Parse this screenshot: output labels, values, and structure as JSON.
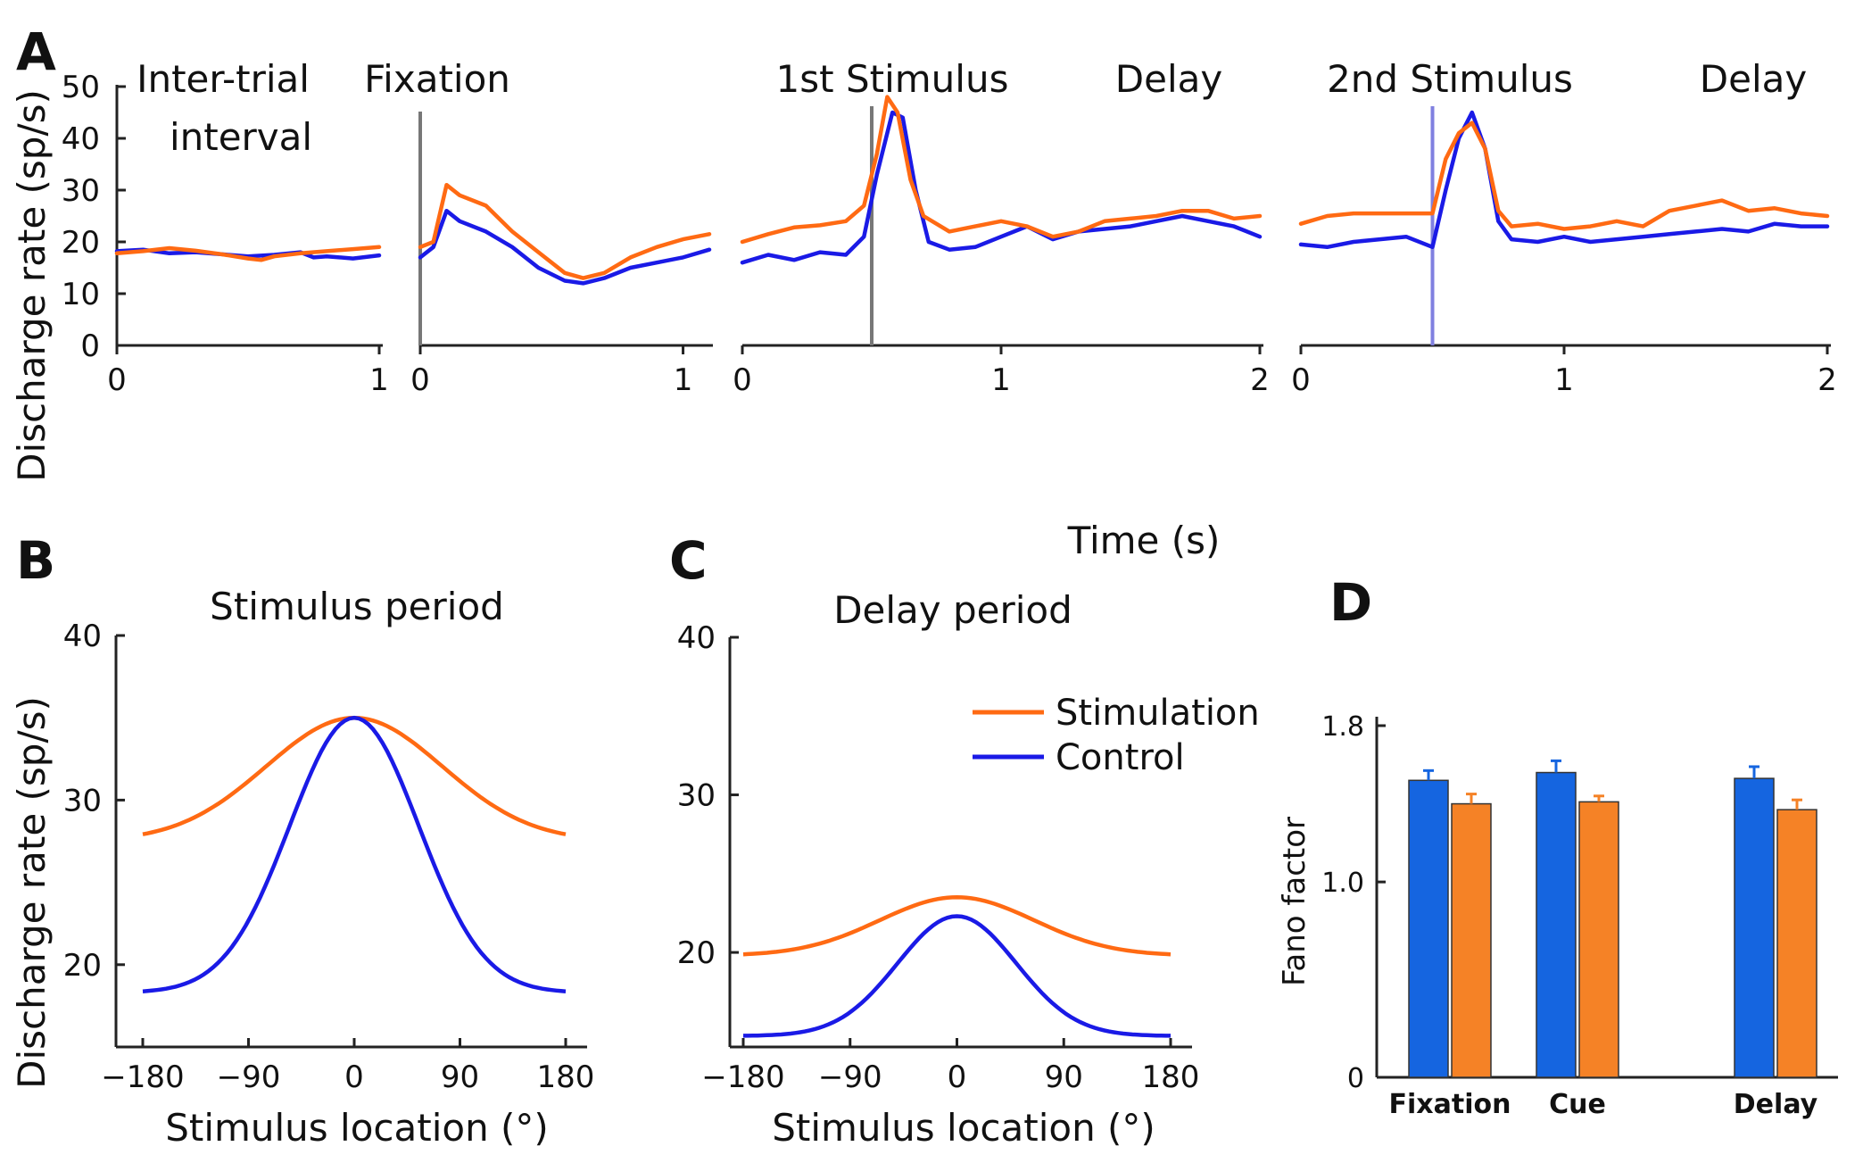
{
  "colors": {
    "stimulation": "#FF6A13",
    "control": "#1A1AE6",
    "bar_control": "#1565E0",
    "bar_stimulation": "#F58226",
    "axis": "#222222",
    "stim_marker_gray": "#777777",
    "stim_marker_blue": "#8080E0"
  },
  "panels": {
    "A": {
      "letter": "A"
    },
    "B": {
      "letter": "B"
    },
    "C": {
      "letter": "C"
    },
    "D": {
      "letter": "D"
    }
  },
  "legend": {
    "stimulation": "Stimulation",
    "control": "Control"
  },
  "chart_data": [
    {
      "id": "A",
      "type": "line",
      "ylabel": "Discharge rate (sp/s)",
      "xlabel": "Time (s)",
      "ylim": [
        0,
        50
      ],
      "yticks": [
        "0",
        "10",
        "20",
        "30",
        "40",
        "50"
      ],
      "epoch_labels": {
        "iti_line1": "Inter-trial",
        "iti_line2": "interval",
        "fixation": "Fixation",
        "stim1": "1st Stimulus",
        "delay1": "Delay",
        "stim2": "2nd Stimulus",
        "delay2": "Delay"
      },
      "subplots": [
        {
          "name": "inter-trial",
          "xlim": [
            0,
            1
          ],
          "xticks": [
            "0",
            "1"
          ],
          "stim_marker": null,
          "stimulation": [
            [
              0,
              17.8
            ],
            [
              0.1,
              18.2
            ],
            [
              0.2,
              18.8
            ],
            [
              0.3,
              18.3
            ],
            [
              0.4,
              17.6
            ],
            [
              0.5,
              16.8
            ],
            [
              0.55,
              16.5
            ],
            [
              0.6,
              17.2
            ],
            [
              0.7,
              17.8
            ],
            [
              0.8,
              18.2
            ],
            [
              0.9,
              18.6
            ],
            [
              1.0,
              19.0
            ]
          ],
          "control": [
            [
              0,
              18.2
            ],
            [
              0.1,
              18.5
            ],
            [
              0.2,
              17.8
            ],
            [
              0.3,
              18.0
            ],
            [
              0.4,
              17.6
            ],
            [
              0.5,
              17.2
            ],
            [
              0.6,
              17.5
            ],
            [
              0.7,
              18.0
            ],
            [
              0.75,
              17.0
            ],
            [
              0.8,
              17.2
            ],
            [
              0.9,
              16.8
            ],
            [
              1.0,
              17.4
            ]
          ]
        },
        {
          "name": "fixation",
          "xlim": [
            0,
            1.1
          ],
          "xticks": [
            "0",
            "1"
          ],
          "stim_marker": 0,
          "stimulation": [
            [
              0,
              19
            ],
            [
              0.05,
              20
            ],
            [
              0.1,
              31
            ],
            [
              0.15,
              29
            ],
            [
              0.25,
              27
            ],
            [
              0.35,
              22
            ],
            [
              0.45,
              18
            ],
            [
              0.55,
              14
            ],
            [
              0.62,
              13
            ],
            [
              0.7,
              14
            ],
            [
              0.8,
              17
            ],
            [
              0.9,
              19
            ],
            [
              1.0,
              20.5
            ],
            [
              1.1,
              21.5
            ]
          ],
          "control": [
            [
              0,
              17
            ],
            [
              0.05,
              19
            ],
            [
              0.1,
              26
            ],
            [
              0.15,
              24
            ],
            [
              0.25,
              22
            ],
            [
              0.35,
              19
            ],
            [
              0.45,
              15
            ],
            [
              0.55,
              12.5
            ],
            [
              0.62,
              12
            ],
            [
              0.7,
              13
            ],
            [
              0.8,
              15
            ],
            [
              0.9,
              16
            ],
            [
              1.0,
              17
            ],
            [
              1.1,
              18.5
            ]
          ]
        },
        {
          "name": "first-stimulus",
          "xlim": [
            0,
            2
          ],
          "xticks": [
            "0",
            "1",
            "2"
          ],
          "stim_marker": 0.5,
          "stimulation": [
            [
              0,
              20
            ],
            [
              0.1,
              21.5
            ],
            [
              0.2,
              22.8
            ],
            [
              0.3,
              23.2
            ],
            [
              0.4,
              24
            ],
            [
              0.47,
              27
            ],
            [
              0.52,
              37
            ],
            [
              0.56,
              48
            ],
            [
              0.6,
              45
            ],
            [
              0.65,
              32
            ],
            [
              0.7,
              25
            ],
            [
              0.8,
              22
            ],
            [
              0.9,
              23
            ],
            [
              1.0,
              24
            ],
            [
              1.1,
              23
            ],
            [
              1.2,
              21
            ],
            [
              1.3,
              22
            ],
            [
              1.4,
              24
            ],
            [
              1.5,
              24.5
            ],
            [
              1.6,
              25
            ],
            [
              1.7,
              26
            ],
            [
              1.8,
              26
            ],
            [
              1.9,
              24.5
            ],
            [
              2.0,
              25
            ]
          ],
          "control": [
            [
              0,
              16
            ],
            [
              0.1,
              17.5
            ],
            [
              0.2,
              16.5
            ],
            [
              0.3,
              18
            ],
            [
              0.4,
              17.5
            ],
            [
              0.47,
              21
            ],
            [
              0.52,
              33
            ],
            [
              0.58,
              45
            ],
            [
              0.62,
              44
            ],
            [
              0.67,
              30
            ],
            [
              0.72,
              20
            ],
            [
              0.8,
              18.5
            ],
            [
              0.9,
              19
            ],
            [
              1.0,
              21
            ],
            [
              1.1,
              23
            ],
            [
              1.2,
              20.5
            ],
            [
              1.3,
              22
            ],
            [
              1.4,
              22.5
            ],
            [
              1.5,
              23
            ],
            [
              1.6,
              24
            ],
            [
              1.7,
              25
            ],
            [
              1.8,
              24
            ],
            [
              1.9,
              23
            ],
            [
              2.0,
              21
            ]
          ]
        },
        {
          "name": "second-stimulus",
          "xlim": [
            0,
            2
          ],
          "xticks": [
            "0",
            "1",
            "2"
          ],
          "stim_marker": 0.5,
          "stimulation": [
            [
              0,
              23.5
            ],
            [
              0.1,
              25
            ],
            [
              0.2,
              25.5
            ],
            [
              0.3,
              25.5
            ],
            [
              0.4,
              25.5
            ],
            [
              0.5,
              25.5
            ],
            [
              0.55,
              36
            ],
            [
              0.6,
              41
            ],
            [
              0.65,
              43
            ],
            [
              0.7,
              38
            ],
            [
              0.75,
              26
            ],
            [
              0.8,
              23
            ],
            [
              0.9,
              23.5
            ],
            [
              1.0,
              22.5
            ],
            [
              1.1,
              23
            ],
            [
              1.2,
              24
            ],
            [
              1.3,
              23
            ],
            [
              1.4,
              26
            ],
            [
              1.5,
              27
            ],
            [
              1.6,
              28
            ],
            [
              1.7,
              26
            ],
            [
              1.8,
              26.5
            ],
            [
              1.9,
              25.5
            ],
            [
              2.0,
              25
            ]
          ],
          "control": [
            [
              0,
              19.5
            ],
            [
              0.1,
              19
            ],
            [
              0.2,
              20
            ],
            [
              0.3,
              20.5
            ],
            [
              0.4,
              21
            ],
            [
              0.5,
              19
            ],
            [
              0.55,
              30
            ],
            [
              0.6,
              40
            ],
            [
              0.65,
              45
            ],
            [
              0.7,
              38
            ],
            [
              0.75,
              24
            ],
            [
              0.8,
              20.5
            ],
            [
              0.9,
              20
            ],
            [
              1.0,
              21
            ],
            [
              1.1,
              20
            ],
            [
              1.2,
              20.5
            ],
            [
              1.3,
              21
            ],
            [
              1.4,
              21.5
            ],
            [
              1.5,
              22
            ],
            [
              1.6,
              22.5
            ],
            [
              1.7,
              22
            ],
            [
              1.8,
              23.5
            ],
            [
              1.9,
              23
            ],
            [
              2.0,
              23
            ]
          ]
        }
      ]
    },
    {
      "id": "B",
      "type": "line",
      "title": "Stimulus period",
      "ylabel": "Discharge rate (sp/s)",
      "xlabel": "Stimulus location (°)",
      "xlim": [
        -180,
        180
      ],
      "xticks": [
        "−180",
        "−90",
        "0",
        "90",
        "180"
      ],
      "ylim": [
        15,
        40
      ],
      "yticks": [
        "20",
        "30",
        "40"
      ],
      "series": [
        {
          "name": "Stimulation",
          "baseline": 27.5,
          "peak": 35.0,
          "width_deg": 75
        },
        {
          "name": "Control",
          "baseline": 18.3,
          "peak": 35.0,
          "width_deg": 55
        }
      ]
    },
    {
      "id": "C",
      "type": "line",
      "title": "Delay period",
      "xlabel": "Stimulus location (°)",
      "xlim": [
        -180,
        180
      ],
      "xticks": [
        "−180",
        "−90",
        "0",
        "90",
        "180"
      ],
      "ylim": [
        14,
        40
      ],
      "yticks": [
        "20",
        "30",
        "40"
      ],
      "series": [
        {
          "name": "Stimulation",
          "baseline": 19.8,
          "peak": 23.5,
          "width_deg": 65
        },
        {
          "name": "Control",
          "baseline": 14.7,
          "peak": 22.3,
          "width_deg": 50
        }
      ]
    },
    {
      "id": "D",
      "type": "bar",
      "ylabel": "Fano factor",
      "ylim": [
        0,
        1.8
      ],
      "yticks": [
        "0",
        "1.0",
        "1.8"
      ],
      "categories": [
        "Fixation",
        "Cue",
        "Delay"
      ],
      "series": [
        {
          "name": "Control",
          "values": [
            1.52,
            1.56,
            1.53
          ],
          "errors": [
            0.05,
            0.06,
            0.06
          ]
        },
        {
          "name": "Stimulation",
          "values": [
            1.4,
            1.41,
            1.37
          ],
          "errors": [
            0.05,
            0.03,
            0.05
          ]
        }
      ]
    }
  ]
}
